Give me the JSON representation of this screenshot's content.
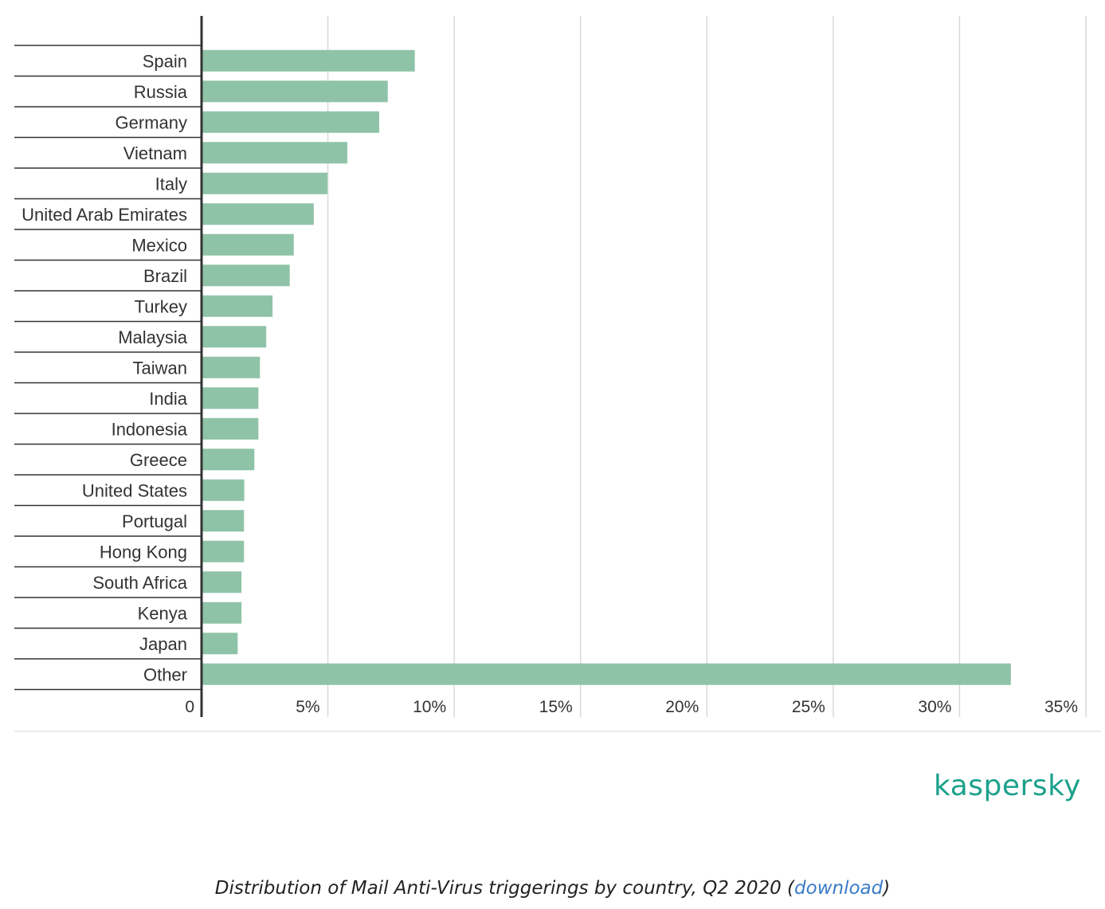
{
  "chart_data": {
    "type": "bar",
    "orientation": "horizontal",
    "categories": [
      "Spain",
      "Russia",
      "Germany",
      "Vietnam",
      "Italy",
      "United Arab Emirates",
      "Mexico",
      "Brazil",
      "Turkey",
      "Malaysia",
      "Taiwan",
      "India",
      "Indonesia",
      "Greece",
      "United States",
      "Portugal",
      "Hong Kong",
      "South Africa",
      "Kenya",
      "Japan",
      "Other"
    ],
    "values": [
      8.44,
      7.37,
      7.03,
      5.77,
      4.98,
      4.44,
      3.65,
      3.49,
      2.81,
      2.56,
      2.31,
      2.25,
      2.25,
      2.09,
      1.69,
      1.68,
      1.68,
      1.58,
      1.58,
      1.43,
      32.03
    ],
    "xlim": [
      0,
      35
    ],
    "x_ticks": [
      0,
      5,
      10,
      15,
      20,
      25,
      30,
      35
    ],
    "x_tick_labels": [
      "0",
      "5%",
      "10%",
      "15%",
      "20%",
      "25%",
      "30%",
      "35%"
    ],
    "grid": true,
    "bar_color": "#8fc3a7",
    "title": "",
    "xlabel": "",
    "ylabel": ""
  },
  "brand": {
    "logo_text": "kaspersky",
    "color": "#1ca18b"
  },
  "caption": {
    "text": "Distribution of Mail Anti-Virus triggerings by country, Q2 2020 (",
    "link_label": "download",
    "suffix": ")",
    "link_color": "#3a7bc8"
  }
}
